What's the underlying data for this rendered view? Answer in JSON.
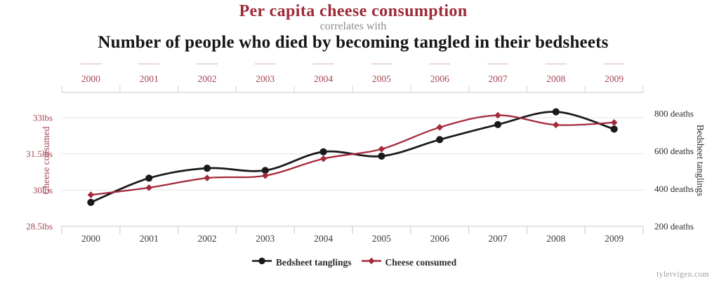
{
  "page": {
    "background": "#ffffff",
    "watermark": "tylervigen.com"
  },
  "header": {
    "title": "Per capita cheese consumption",
    "connector": "correlates with",
    "subtitle": "Number of people who died by becoming tangled in their bedsheets",
    "title_color": "#9e2a38",
    "connector_color": "#8b8b8b",
    "subtitle_color": "#161616"
  },
  "chart_data": {
    "type": "line",
    "x": [
      2000,
      2001,
      2002,
      2003,
      2004,
      2005,
      2006,
      2007,
      2008,
      2009
    ],
    "series": [
      {
        "name": "Bedsheet tanglings",
        "axis": "right",
        "unit": "deaths",
        "color": "#1a1a1a",
        "marker": "circle",
        "values": [
          327,
          456,
          509,
          497,
          596,
          573,
          661,
          741,
          809,
          717
        ]
      },
      {
        "name": "Cheese consumed",
        "axis": "left",
        "unit": "lbs",
        "color": "#a42a3a",
        "marker": "diamond",
        "values": [
          29.8,
          30.1,
          30.5,
          30.6,
          31.3,
          31.7,
          32.6,
          33.1,
          32.7,
          32.8
        ]
      }
    ],
    "top_axis": {
      "labels": [
        "2000",
        "2001",
        "2002",
        "2003",
        "2004",
        "2005",
        "2006",
        "2007",
        "2008",
        "2009"
      ],
      "color": "#a34652"
    },
    "bottom_axis": {
      "labels": [
        "2000",
        "2001",
        "2002",
        "2003",
        "2004",
        "2005",
        "2006",
        "2007",
        "2008",
        "2009"
      ],
      "color": "#3a3a3a"
    },
    "left_axis": {
      "title": "Cheese consumed",
      "color": "#a34652",
      "min": 28.5,
      "max": 33,
      "tick_values": [
        28.5,
        30,
        31.5,
        33
      ],
      "tick_labels": [
        "28.5lbs",
        "30lbs",
        "31.5lbs",
        "33lbs"
      ]
    },
    "right_axis": {
      "title": "Bedsheet tanglings",
      "color": "#2b2b2b",
      "min": 200,
      "max": 800,
      "tick_values": [
        200,
        400,
        600,
        800
      ],
      "tick_labels": [
        "200 deaths",
        "400 deaths",
        "600 deaths",
        "800 deaths"
      ]
    },
    "grid": true,
    "legend_position": "bottom"
  },
  "legend": {
    "items": [
      {
        "label": "Bedsheet tanglings",
        "color": "#1a1a1a",
        "marker": "circle"
      },
      {
        "label": "Cheese consumed",
        "color": "#a42a3a",
        "marker": "diamond"
      }
    ]
  }
}
